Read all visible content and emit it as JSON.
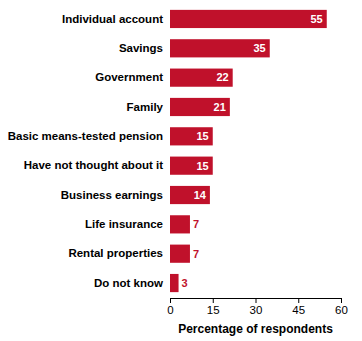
{
  "chart_data": {
    "type": "bar",
    "orientation": "horizontal",
    "categories": [
      "Individual account",
      "Savings",
      "Government",
      "Family",
      "Basic means-tested pension",
      "Have not thought about it",
      "Business earnings",
      "Life insurance",
      "Rental properties",
      "Do not know"
    ],
    "values": [
      55,
      35,
      22,
      21,
      15,
      15,
      14,
      7,
      7,
      3
    ],
    "color": "#c0112b",
    "x_label": "Percentage of respondents",
    "xlim": [
      0,
      60
    ],
    "xticks": [
      0,
      15,
      30,
      45,
      60
    ],
    "grid": false,
    "data_labels": true
  }
}
